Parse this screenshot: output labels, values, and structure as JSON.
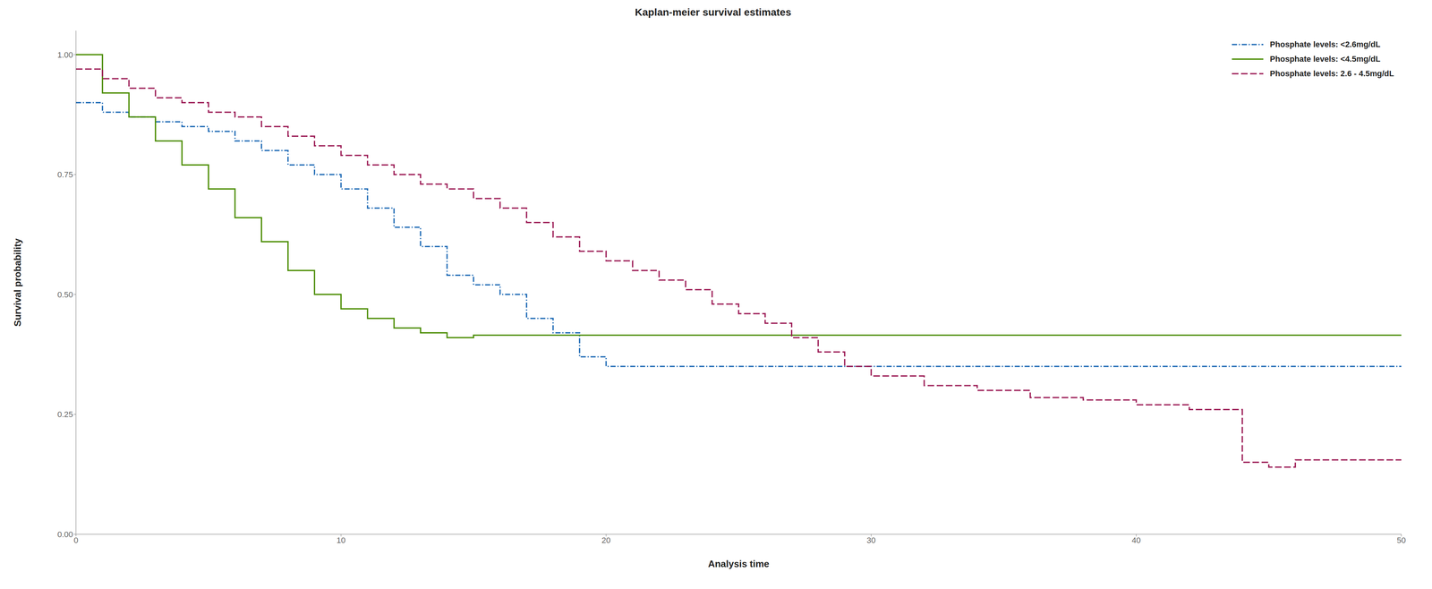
{
  "chart_data": {
    "type": "line",
    "title": "Kaplan-meier survival estimates",
    "x_label": "Analysis time",
    "y_label": "Survival probability",
    "xlim": [
      0,
      50
    ],
    "ylim": [
      0.0,
      1.05
    ],
    "xticks": [
      0,
      10,
      20,
      30,
      40,
      50
    ],
    "yticks": [
      {
        "value": 0.0,
        "label": "0.00"
      },
      {
        "value": 0.25,
        "label": "0.25"
      },
      {
        "value": 0.5,
        "label": "0.50"
      },
      {
        "value": 0.75,
        "label": "0.75"
      },
      {
        "value": 1.0,
        "label": "1.00"
      }
    ],
    "grid": false,
    "legend": "upper right",
    "series": [
      {
        "name": "Phosphate levels: <2.6mg/dL",
        "color": "#1e6ab5",
        "line_style": "dashdot",
        "x": [
          0,
          1,
          1,
          2,
          2,
          3,
          3,
          4,
          4,
          5,
          5,
          6,
          6,
          7,
          7,
          8,
          8,
          9,
          9,
          10,
          10,
          11,
          11,
          12,
          12,
          13,
          13,
          14,
          14,
          15,
          15,
          16,
          16,
          17,
          17,
          18,
          18,
          19,
          19,
          20,
          20,
          50
        ],
        "values": [
          0.9,
          0.9,
          0.88,
          0.88,
          0.87,
          0.87,
          0.86,
          0.86,
          0.85,
          0.85,
          0.84,
          0.84,
          0.82,
          0.82,
          0.8,
          0.8,
          0.77,
          0.77,
          0.75,
          0.75,
          0.72,
          0.72,
          0.68,
          0.68,
          0.64,
          0.64,
          0.6,
          0.6,
          0.54,
          0.54,
          0.52,
          0.52,
          0.5,
          0.5,
          0.45,
          0.45,
          0.42,
          0.42,
          0.37,
          0.37,
          0.35,
          0.35
        ]
      },
      {
        "name": "Phosphate levels: <4.5mg/dL",
        "color": "#4a8c00",
        "line_style": "solid",
        "x": [
          0,
          1,
          1,
          2,
          2,
          3,
          3,
          4,
          4,
          5,
          5,
          6,
          6,
          7,
          7,
          8,
          8,
          9,
          9,
          10,
          10,
          11,
          11,
          12,
          12,
          13,
          13,
          14,
          14,
          15,
          15,
          16,
          16,
          17,
          17,
          18,
          18,
          19,
          19,
          50
        ],
        "values": [
          1.0,
          1.0,
          0.92,
          0.92,
          0.87,
          0.87,
          0.82,
          0.82,
          0.77,
          0.77,
          0.72,
          0.72,
          0.66,
          0.66,
          0.61,
          0.61,
          0.55,
          0.55,
          0.5,
          0.5,
          0.47,
          0.47,
          0.45,
          0.45,
          0.43,
          0.43,
          0.42,
          0.42,
          0.41,
          0.41,
          0.415,
          0.415,
          0.415,
          0.415,
          0.415,
          0.415,
          0.415,
          0.415,
          0.415,
          0.415
        ]
      },
      {
        "name": "Phosphate levels: 2.6 - 4.5mg/dL",
        "color": "#9b1a54",
        "line_style": "dashed",
        "x": [
          0,
          1,
          1,
          2,
          2,
          3,
          3,
          4,
          4,
          5,
          5,
          6,
          6,
          7,
          7,
          8,
          8,
          9,
          9,
          10,
          10,
          11,
          11,
          12,
          12,
          13,
          13,
          14,
          14,
          15,
          15,
          16,
          16,
          17,
          17,
          18,
          18,
          19,
          19,
          20,
          20,
          21,
          21,
          22,
          22,
          23,
          23,
          24,
          24,
          25,
          25,
          26,
          26,
          27,
          27,
          28,
          28,
          29,
          29,
          30,
          30,
          32,
          32,
          34,
          34,
          36,
          36,
          38,
          38,
          40,
          40,
          42,
          42,
          44,
          44,
          45,
          45,
          46,
          46,
          48,
          48,
          50
        ],
        "values": [
          0.97,
          0.97,
          0.95,
          0.95,
          0.93,
          0.93,
          0.91,
          0.91,
          0.9,
          0.9,
          0.88,
          0.88,
          0.87,
          0.87,
          0.85,
          0.85,
          0.83,
          0.83,
          0.81,
          0.81,
          0.79,
          0.79,
          0.77,
          0.77,
          0.75,
          0.75,
          0.73,
          0.73,
          0.72,
          0.72,
          0.7,
          0.7,
          0.68,
          0.68,
          0.65,
          0.65,
          0.62,
          0.62,
          0.59,
          0.59,
          0.57,
          0.57,
          0.55,
          0.55,
          0.53,
          0.53,
          0.51,
          0.51,
          0.48,
          0.48,
          0.46,
          0.46,
          0.44,
          0.44,
          0.41,
          0.41,
          0.38,
          0.38,
          0.35,
          0.35,
          0.33,
          0.33,
          0.31,
          0.31,
          0.3,
          0.3,
          0.285,
          0.285,
          0.28,
          0.28,
          0.27,
          0.27,
          0.26,
          0.26,
          0.15,
          0.15,
          0.14,
          0.14,
          0.155,
          0.155,
          0.155,
          0.155
        ]
      }
    ]
  }
}
